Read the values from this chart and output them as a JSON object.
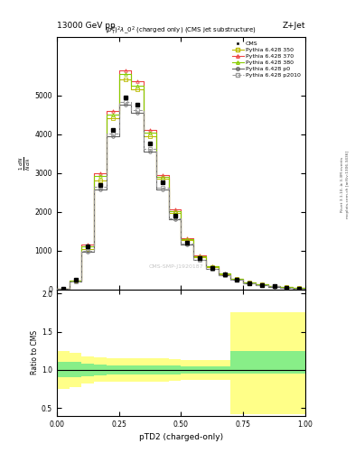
{
  "title_top": "13000 GeV pp",
  "title_right": "Z+Jet",
  "plot_title": "(p_{T}^{p})^{2}#lambda_{0}^{2} (charged only) (CMS jet substructure)",
  "xlabel": "pTD2 (charged-only)",
  "ylabel_ratio": "Ratio to CMS",
  "right_label1": "Rivet 3.1.10, ≥ 3.3M events",
  "right_label2": "mcplots.cern.ch [arXiv:1306.3436]",
  "watermark": "CMS-SMP-J1920187",
  "x_bins": [
    0.0,
    0.05,
    0.1,
    0.15,
    0.2,
    0.25,
    0.3,
    0.35,
    0.4,
    0.45,
    0.5,
    0.55,
    0.6,
    0.65,
    0.7,
    0.75,
    0.8,
    0.85,
    0.9,
    0.95,
    1.0
  ],
  "cms_data": [
    20,
    250,
    1100,
    2700,
    4100,
    4950,
    4750,
    3750,
    2750,
    1900,
    1200,
    800,
    550,
    380,
    260,
    170,
    120,
    80,
    50,
    30
  ],
  "py350_data": [
    20,
    230,
    1050,
    2800,
    4400,
    5400,
    5150,
    3950,
    2850,
    1980,
    1280,
    840,
    580,
    400,
    270,
    180,
    125,
    85,
    55,
    32
  ],
  "py370_data": [
    20,
    240,
    1150,
    3000,
    4600,
    5650,
    5350,
    4100,
    2950,
    2060,
    1330,
    875,
    605,
    420,
    285,
    190,
    132,
    90,
    58,
    35
  ],
  "py380_data": [
    20,
    235,
    1100,
    2920,
    4500,
    5550,
    5250,
    4030,
    2900,
    2020,
    1305,
    858,
    592,
    410,
    278,
    185,
    128,
    88,
    57,
    34
  ],
  "py_p0_data": [
    20,
    210,
    980,
    2580,
    3950,
    4750,
    4550,
    3550,
    2580,
    1800,
    1160,
    760,
    525,
    362,
    245,
    163,
    113,
    77,
    49,
    29
  ],
  "py_p2010_data": [
    20,
    215,
    1000,
    2650,
    4020,
    4830,
    4620,
    3610,
    2620,
    1830,
    1180,
    773,
    533,
    368,
    249,
    166,
    115,
    78,
    50,
    30
  ],
  "ratio_green_lo": [
    0.9,
    0.9,
    0.92,
    0.93,
    0.94,
    0.94,
    0.94,
    0.94,
    0.94,
    0.94,
    0.95,
    0.95,
    0.95,
    0.95,
    0.95,
    0.95,
    0.95,
    0.95,
    0.95,
    0.95
  ],
  "ratio_green_hi": [
    1.1,
    1.1,
    1.08,
    1.07,
    1.06,
    1.06,
    1.06,
    1.06,
    1.06,
    1.06,
    1.05,
    1.05,
    1.05,
    1.05,
    1.25,
    1.25,
    1.25,
    1.25,
    1.25,
    1.25
  ],
  "ratio_yellow_lo": [
    0.75,
    0.78,
    0.82,
    0.84,
    0.85,
    0.85,
    0.85,
    0.85,
    0.85,
    0.86,
    0.87,
    0.87,
    0.87,
    0.87,
    0.42,
    0.42,
    0.42,
    0.42,
    0.42,
    0.42
  ],
  "ratio_yellow_hi": [
    1.25,
    1.22,
    1.18,
    1.16,
    1.15,
    1.15,
    1.15,
    1.15,
    1.15,
    1.14,
    1.13,
    1.13,
    1.13,
    1.13,
    1.75,
    1.75,
    1.75,
    1.75,
    1.75,
    1.75
  ],
  "color_350": "#bbbb00",
  "color_370": "#ee4444",
  "color_380": "#88cc00",
  "color_p0": "#666666",
  "color_p2010": "#999999",
  "color_cms": "#000000",
  "ylim_main": [
    0,
    6500
  ],
  "ylim_ratio": [
    0.4,
    2.05
  ],
  "xlim": [
    0.0,
    1.0
  ]
}
